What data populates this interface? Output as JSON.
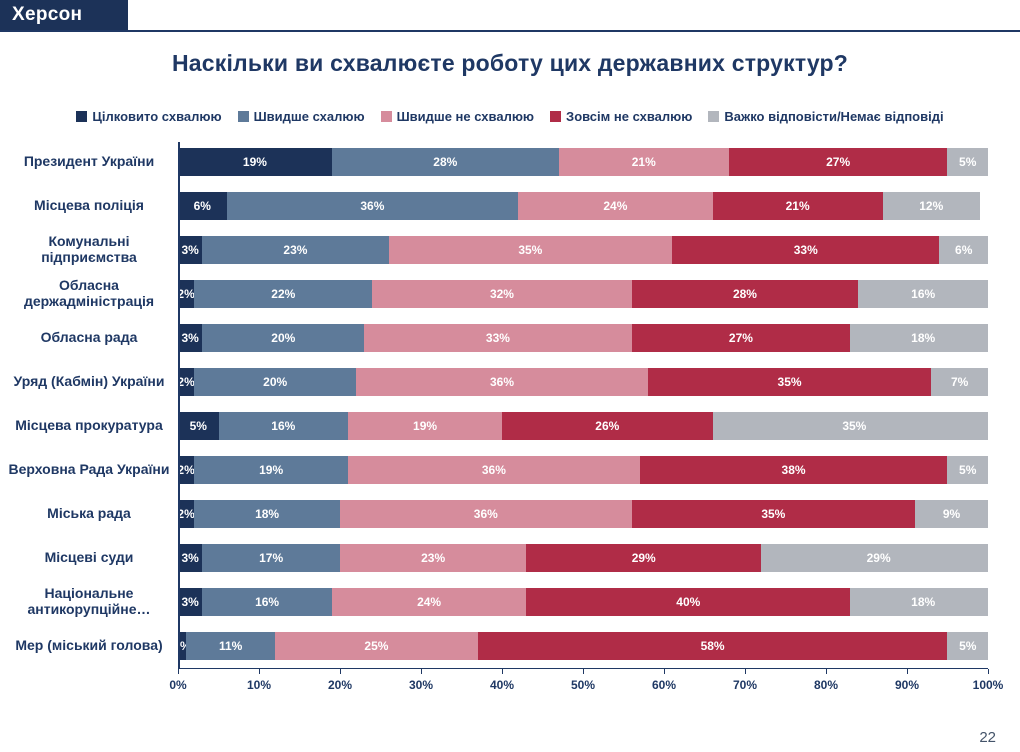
{
  "header": {
    "region": "Херсон"
  },
  "chart_data": {
    "type": "bar",
    "orientation": "horizontal-stacked",
    "title": "Наскільки ви схвалюєте роботу цих державних структур?",
    "categories": [
      "Президент України",
      "Місцева поліція",
      "Комунальні підприємства",
      "Обласна держадміністрація",
      "Обласна рада",
      "Уряд (Кабмін) України",
      "Місцева прокуратура",
      "Верховна Рада України",
      "Міська рада",
      "Місцеві суди",
      "Національне антикорупційне…",
      "Мер (міський голова)"
    ],
    "series": [
      {
        "name": "Цілковито схвалюю",
        "color": "#1c3258",
        "values": [
          19,
          6,
          3,
          2,
          3,
          2,
          5,
          2,
          2,
          3,
          3,
          1
        ]
      },
      {
        "name": "Швидше схалюю",
        "color": "#5e7a99",
        "values": [
          28,
          36,
          23,
          22,
          20,
          20,
          16,
          19,
          18,
          17,
          16,
          11
        ]
      },
      {
        "name": "Швидше не схвалюю",
        "color": "#d68c9c",
        "values": [
          21,
          24,
          35,
          32,
          33,
          36,
          19,
          36,
          36,
          23,
          24,
          25
        ]
      },
      {
        "name": "Зовсім не схвалюю",
        "color": "#b02c47",
        "values": [
          27,
          21,
          33,
          28,
          27,
          35,
          26,
          38,
          35,
          29,
          40,
          58
        ]
      },
      {
        "name": "Важко відповісти/Немає відповіді",
        "color": "#b2b6bd",
        "values": [
          5,
          12,
          6,
          16,
          18,
          7,
          35,
          5,
          9,
          29,
          18,
          5
        ]
      }
    ],
    "value_suffix": "%",
    "x_axis": {
      "min": 0,
      "max": 100,
      "ticks": [
        "0%",
        "10%",
        "20%",
        "30%",
        "40%",
        "50%",
        "60%",
        "70%",
        "80%",
        "90%",
        "100%"
      ]
    },
    "legend_position": "top",
    "grid": false
  },
  "footer": {
    "page_number": "22"
  }
}
